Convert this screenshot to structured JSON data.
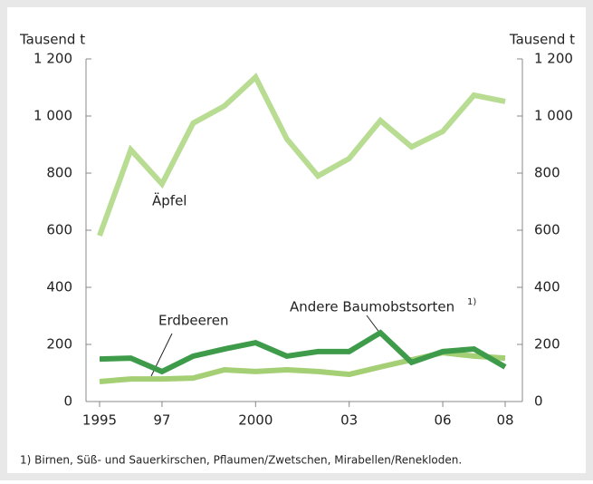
{
  "chart_data": {
    "type": "line",
    "y_label": "Tausend t",
    "y2_label": "Tausend t",
    "x": [
      1995,
      1996,
      1997,
      1998,
      1999,
      2000,
      2001,
      2002,
      2003,
      2004,
      2005,
      2006,
      2007,
      2008
    ],
    "xlim": [
      1995,
      2008
    ],
    "xticks": [
      1995,
      {
        "value": 1997,
        "label": "97"
      },
      2000,
      {
        "value": 2003,
        "label": "03"
      },
      {
        "value": 2006,
        "label": "06"
      },
      {
        "value": 2008,
        "label": "08"
      }
    ],
    "ylim": [
      0,
      1200
    ],
    "yticks": [
      0,
      200,
      400,
      600,
      800,
      {
        "value": 1000,
        "label": "1 000"
      },
      {
        "value": 1200,
        "label": "1 200"
      }
    ],
    "y2lim": [
      0,
      1200
    ],
    "y2ticks": [
      0,
      200,
      400,
      600,
      800,
      {
        "value": 1000,
        "label": "1 000"
      },
      {
        "value": 1200,
        "label": "1 200"
      }
    ],
    "series": [
      {
        "name": "Äpfel",
        "color": "#b7dc92",
        "values": [
          581,
          882,
          762,
          975,
          1035,
          1136,
          920,
          790,
          851,
          984,
          892,
          946,
          1073,
          1051
        ]
      },
      {
        "name": "Erdbeeren",
        "color": "#a4cf74",
        "values": [
          70,
          79,
          79,
          82,
          111,
          105,
          111,
          105,
          95,
          121,
          146,
          171,
          159,
          152
        ]
      },
      {
        "name": "Andere Baumobstsorten",
        "color": "#3e9b4a",
        "values": [
          149,
          152,
          105,
          159,
          184,
          206,
          159,
          175,
          175,
          241,
          137,
          175,
          184,
          121
        ]
      }
    ],
    "footnote_marker": "1)",
    "footnote": "1) Birnen, Süß- und Sauerkirschen, Pflaumen/Zwetschen, Mirabellen/Renekloden."
  }
}
